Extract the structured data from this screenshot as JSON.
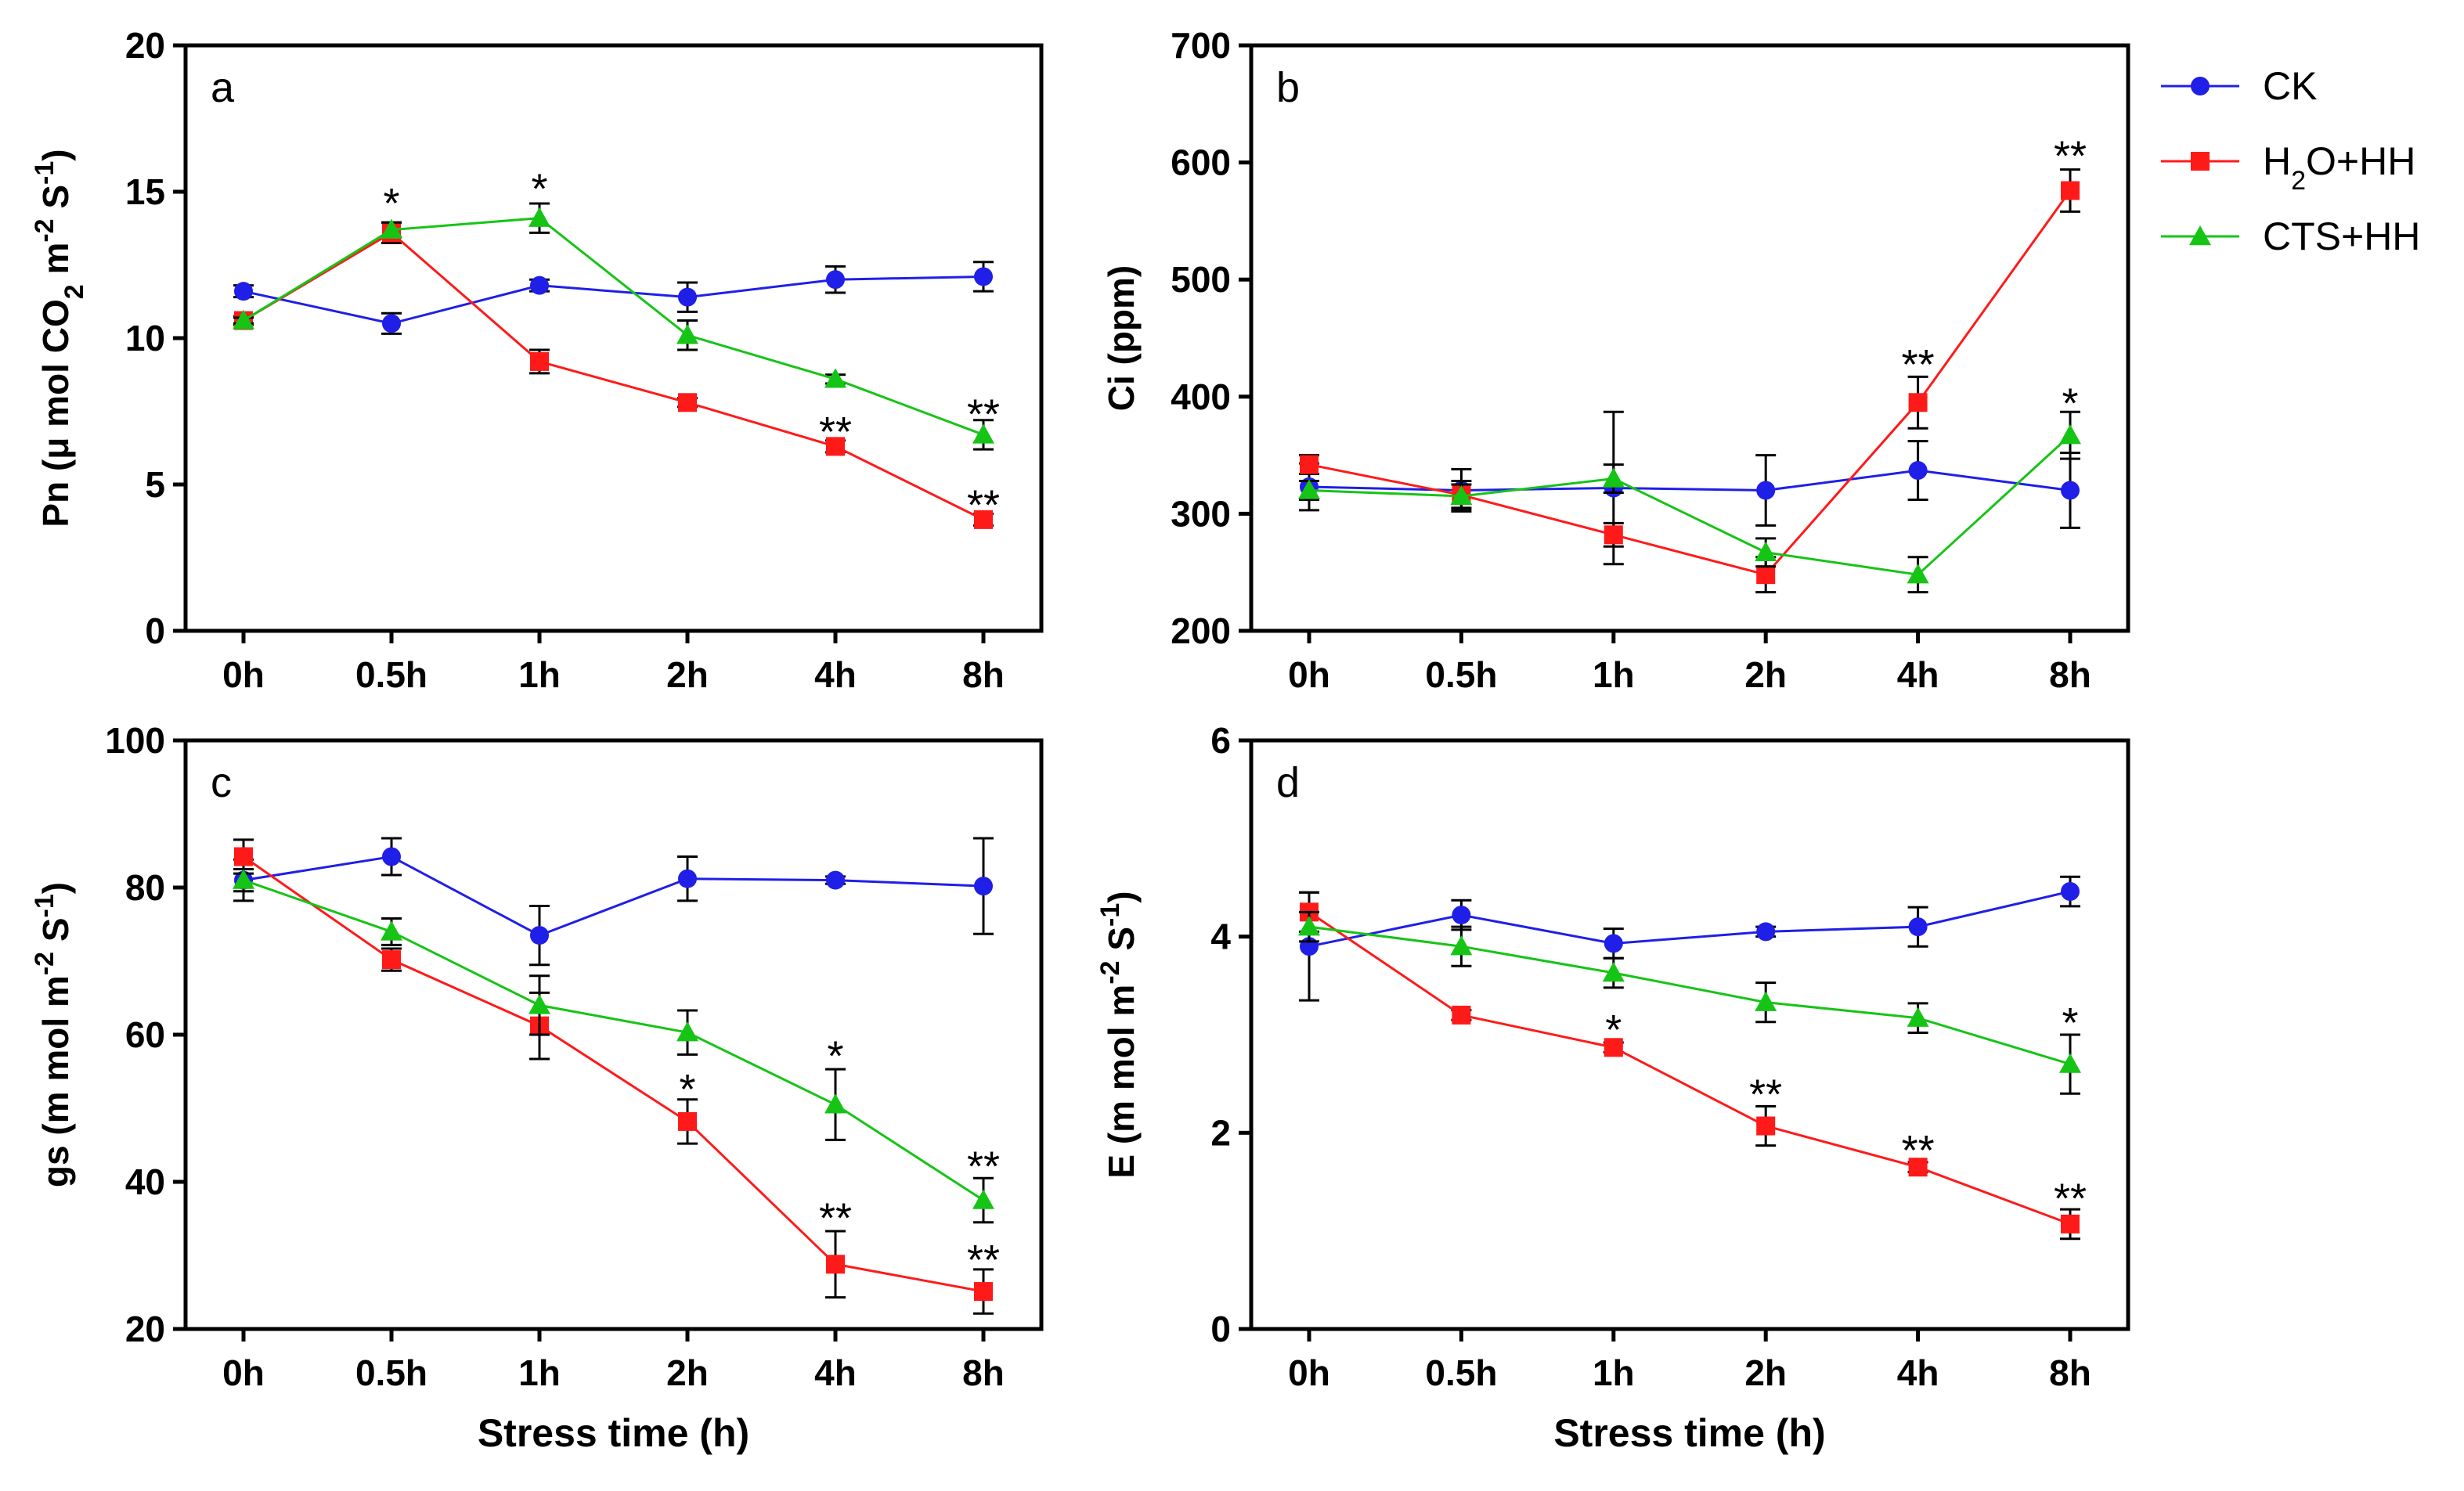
{
  "legend": {
    "position": "top-right",
    "items": [
      {
        "key": "ck",
        "label": "CK",
        "color": "#1f1fe8",
        "marker": "circle"
      },
      {
        "key": "h2o",
        "label": "H2O+HH",
        "label_parts": {
          "main": "H",
          "sub": "2",
          "rest": "O+HH"
        },
        "color": "#ff1a1a",
        "marker": "square"
      },
      {
        "key": "cts",
        "label": "CTS+HH",
        "color": "#16c416",
        "marker": "triangle"
      }
    ]
  },
  "shared_xlabel": "Stress time (h)",
  "chart_data": [
    {
      "id": "a",
      "type": "line",
      "panel_letter": "a",
      "ylabel": "Pn (μ mol CO2 m-2 S-1)",
      "ylabel_parts": [
        "Pn (μ mol CO",
        {
          "sub": "2"
        },
        " m",
        {
          "sup": "-2"
        },
        " S",
        {
          "sup": "-1"
        },
        ")"
      ],
      "xlabel": "",
      "categories": [
        "0h",
        "0.5h",
        "1h",
        "2h",
        "4h",
        "8h"
      ],
      "ylim": [
        0,
        20
      ],
      "yticks": [
        0,
        5,
        10,
        15,
        20
      ],
      "series": [
        {
          "name": "CK",
          "values": [
            11.6,
            10.5,
            11.8,
            11.4,
            12.0,
            12.1
          ],
          "errors": [
            0.2,
            0.35,
            0.2,
            0.5,
            0.45,
            0.5
          ]
        },
        {
          "name": "H2O+HH",
          "values": [
            10.6,
            13.6,
            9.2,
            7.8,
            6.3,
            3.8
          ],
          "errors": [
            0.15,
            0.35,
            0.4,
            0.15,
            0.2,
            0.2
          ]
        },
        {
          "name": "CTS+HH",
          "values": [
            10.6,
            13.7,
            14.1,
            10.1,
            8.6,
            6.7
          ],
          "errors": [
            0.1,
            0.25,
            0.5,
            0.5,
            0.15,
            0.5
          ]
        }
      ],
      "annotations": [
        {
          "category": "0.5h",
          "text": "*",
          "y": 14.7
        },
        {
          "category": "1h",
          "text": "*",
          "y": 15.2
        },
        {
          "category": "4h",
          "text": "**",
          "y": 6.9
        },
        {
          "category": "8h",
          "text": "**",
          "y": 7.5
        },
        {
          "category": "8h",
          "text": "**",
          "y": 4.4
        }
      ]
    },
    {
      "id": "b",
      "type": "line",
      "panel_letter": "b",
      "ylabel": "Ci (ppm)",
      "ylabel_parts": [
        "Ci (ppm)"
      ],
      "xlabel": "",
      "categories": [
        "0h",
        "0.5h",
        "1h",
        "2h",
        "4h",
        "8h"
      ],
      "ylim": [
        200,
        700
      ],
      "yticks": [
        200,
        300,
        400,
        500,
        600,
        700
      ],
      "series": [
        {
          "name": "CK",
          "values": [
            323,
            320,
            322,
            320,
            337,
            320
          ],
          "errors": [
            20,
            18,
            65,
            30,
            25,
            32
          ]
        },
        {
          "name": "H2O+HH",
          "values": [
            342,
            316,
            282,
            248,
            395,
            576
          ],
          "errors": [
            8,
            12,
            10,
            15,
            22,
            18
          ]
        },
        {
          "name": "CTS+HH",
          "values": [
            320,
            315,
            330,
            267,
            248,
            367
          ],
          "errors": [
            8,
            10,
            12,
            12,
            15,
            20
          ]
        }
      ],
      "annotations": [
        {
          "category": "4h",
          "text": "**",
          "y": 430
        },
        {
          "category": "8h",
          "text": "**",
          "y": 608
        },
        {
          "category": "8h",
          "text": "*",
          "y": 397
        }
      ]
    },
    {
      "id": "c",
      "type": "line",
      "panel_letter": "c",
      "ylabel": "gs (m mol m-2 S-1)",
      "ylabel_parts": [
        "gs (m mol m",
        {
          "sup": "-2"
        },
        " S",
        {
          "sup": "-1"
        },
        ")"
      ],
      "xlabel": "Stress time (h)",
      "categories": [
        "0h",
        "0.5h",
        "1h",
        "2h",
        "4h",
        "8h"
      ],
      "ylim": [
        20,
        100
      ],
      "yticks": [
        20,
        40,
        60,
        80,
        100
      ],
      "series": [
        {
          "name": "CK",
          "values": [
            81.0,
            84.2,
            73.5,
            81.2,
            81.0,
            80.2
          ],
          "errors": [
            2.8,
            2.5,
            4.0,
            3.0,
            0.5,
            6.5
          ]
        },
        {
          "name": "H2O+HH",
          "values": [
            84.2,
            70.2,
            61.2,
            48.2,
            28.8,
            25.1
          ],
          "errors": [
            2.3,
            1.5,
            4.5,
            3.0,
            4.5,
            3.0
          ]
        },
        {
          "name": "CTS+HH",
          "values": [
            81.0,
            74.0,
            64.0,
            60.3,
            50.5,
            37.5
          ],
          "errors": [
            1.5,
            1.8,
            4.0,
            3.0,
            4.8,
            3.0
          ]
        }
      ],
      "annotations": [
        {
          "category": "2h",
          "text": "*",
          "y": 53
        },
        {
          "category": "4h",
          "text": "*",
          "y": 57.5
        },
        {
          "category": "4h",
          "text": "**",
          "y": 35.5
        },
        {
          "category": "8h",
          "text": "**",
          "y": 42.5
        },
        {
          "category": "8h",
          "text": "**",
          "y": 29.8
        }
      ]
    },
    {
      "id": "d",
      "type": "line",
      "panel_letter": "d",
      "ylabel": "E (m mol m-2 S-1)",
      "ylabel_parts": [
        "E (m mol m",
        {
          "sup": "-2"
        },
        " S",
        {
          "sup": "-1"
        },
        ")"
      ],
      "xlabel": "Stress time (h)",
      "categories": [
        "0h",
        "0.5h",
        "1h",
        "2h",
        "4h",
        "8h"
      ],
      "ylim": [
        0,
        6
      ],
      "yticks": [
        0,
        2,
        4,
        6
      ],
      "series": [
        {
          "name": "CK",
          "values": [
            3.9,
            4.22,
            3.93,
            4.05,
            4.1,
            4.46
          ],
          "errors": [
            0.55,
            0.15,
            0.15,
            0.05,
            0.2,
            0.15
          ]
        },
        {
          "name": "H2O+HH",
          "values": [
            4.25,
            3.2,
            2.87,
            2.07,
            1.65,
            1.07
          ],
          "errors": [
            0.2,
            0.05,
            0.05,
            0.2,
            0.05,
            0.15
          ]
        },
        {
          "name": "CTS+HH",
          "values": [
            4.1,
            3.9,
            3.63,
            3.33,
            3.17,
            2.7
          ],
          "errors": [
            0.15,
            0.2,
            0.15,
            0.2,
            0.15,
            0.3
          ]
        }
      ],
      "annotations": [
        {
          "category": "1h",
          "text": "*",
          "y": 3.08
        },
        {
          "category": "2h",
          "text": "**",
          "y": 2.42
        },
        {
          "category": "4h",
          "text": "**",
          "y": 1.85
        },
        {
          "category": "8h",
          "text": "*",
          "y": 3.15
        },
        {
          "category": "8h",
          "text": "**",
          "y": 1.36
        }
      ]
    }
  ]
}
